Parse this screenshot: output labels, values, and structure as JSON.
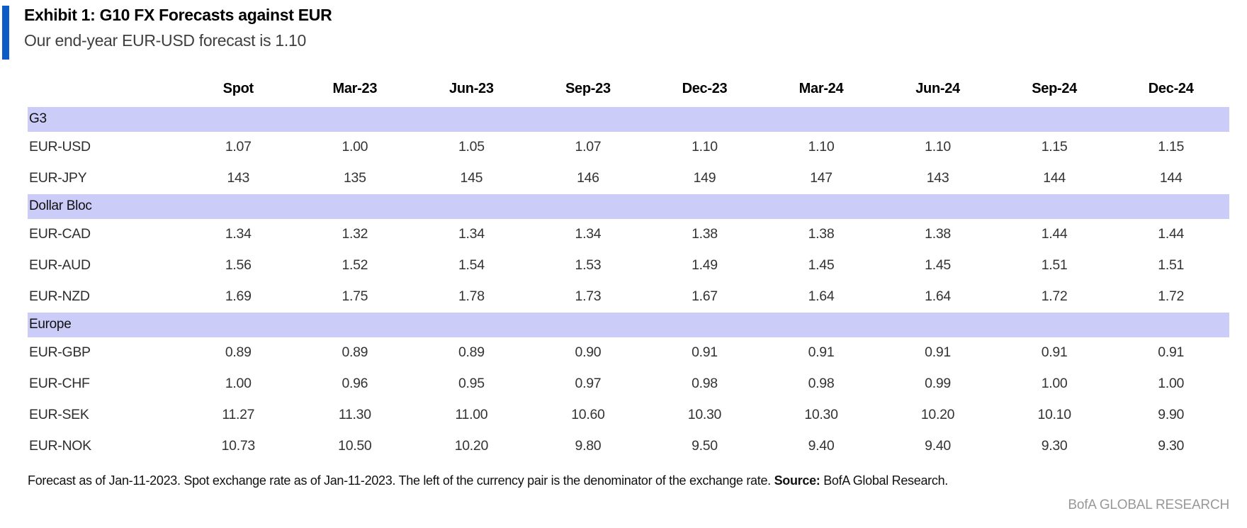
{
  "header": {
    "exhibit_title": "Exhibit 1: G10 FX Forecasts against EUR",
    "subtitle": "Our end-year EUR-USD forecast is 1.10"
  },
  "table": {
    "columns": [
      "",
      "Spot",
      "Mar-23",
      "Jun-23",
      "Sep-23",
      "Dec-23",
      "Mar-24",
      "Jun-24",
      "Sep-24",
      "Dec-24"
    ],
    "sections": [
      {
        "label": "G3",
        "rows": [
          {
            "pair": "EUR-USD",
            "values": [
              "1.07",
              "1.00",
              "1.05",
              "1.07",
              "1.10",
              "1.10",
              "1.10",
              "1.15",
              "1.15"
            ]
          },
          {
            "pair": "EUR-JPY",
            "values": [
              "143",
              "135",
              "145",
              "146",
              "149",
              "147",
              "143",
              "144",
              "144"
            ]
          }
        ]
      },
      {
        "label": "Dollar Bloc",
        "rows": [
          {
            "pair": "EUR-CAD",
            "values": [
              "1.34",
              "1.32",
              "1.34",
              "1.34",
              "1.38",
              "1.38",
              "1.38",
              "1.44",
              "1.44"
            ]
          },
          {
            "pair": "EUR-AUD",
            "values": [
              "1.56",
              "1.52",
              "1.54",
              "1.53",
              "1.49",
              "1.45",
              "1.45",
              "1.51",
              "1.51"
            ]
          },
          {
            "pair": "EUR-NZD",
            "values": [
              "1.69",
              "1.75",
              "1.78",
              "1.73",
              "1.67",
              "1.64",
              "1.64",
              "1.72",
              "1.72"
            ]
          }
        ]
      },
      {
        "label": "Europe",
        "rows": [
          {
            "pair": "EUR-GBP",
            "values": [
              "0.89",
              "0.89",
              "0.89",
              "0.90",
              "0.91",
              "0.91",
              "0.91",
              "0.91",
              "0.91"
            ]
          },
          {
            "pair": "EUR-CHF",
            "values": [
              "1.00",
              "0.96",
              "0.95",
              "0.97",
              "0.98",
              "0.98",
              "0.99",
              "1.00",
              "1.00"
            ]
          },
          {
            "pair": "EUR-SEK",
            "values": [
              "11.27",
              "11.30",
              "11.00",
              "10.60",
              "10.30",
              "10.30",
              "10.20",
              "10.10",
              "9.90"
            ]
          },
          {
            "pair": "EUR-NOK",
            "values": [
              "10.73",
              "10.50",
              "10.20",
              "9.80",
              "9.50",
              "9.40",
              "9.40",
              "9.30",
              "9.30"
            ]
          }
        ]
      }
    ]
  },
  "footnote": {
    "text": "Forecast as of Jan-11-2023. Spot exchange rate as of Jan-11-2023. The left of the currency pair is the denominator of the exchange rate.",
    "source_label": "Source:",
    "source_text": "BofA Global Research."
  },
  "branding": "BofA GLOBAL RESEARCH",
  "colors": {
    "accent_bar": "#0b5cc7",
    "section_band": "#ccccf8"
  }
}
